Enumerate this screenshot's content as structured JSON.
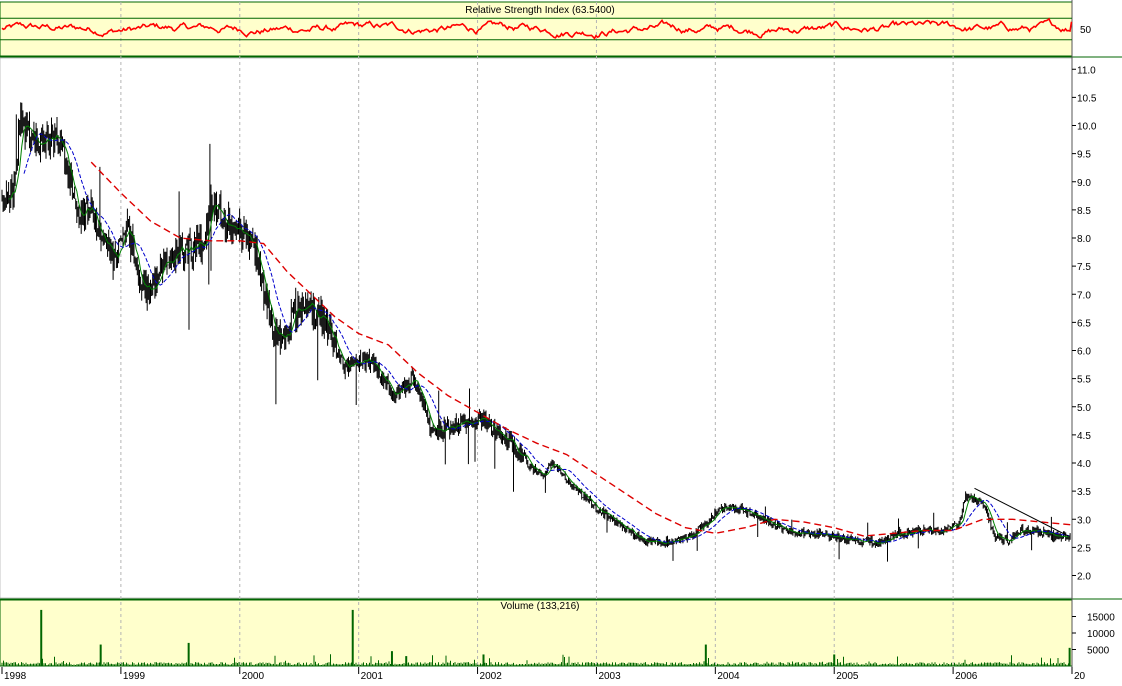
{
  "colors": {
    "rsi_panel_bg": "#ffffcc",
    "rsi_line": "#ff0000",
    "panel_border": "#006600",
    "price_bars": "#000000",
    "ma_short": "#008000",
    "ma_medium": "#0000cc",
    "ma_long": "#dd0000",
    "volume_bars": "#006600",
    "grid": "#b4b4b4"
  },
  "chart_data": [
    {
      "type": "line",
      "panel": "rsi",
      "title": "Relative Strength Index (63.5400)",
      "y_ticks": [
        "50"
      ],
      "ylim": [
        0,
        100
      ],
      "reference_lines": [
        30,
        70
      ],
      "last_value": 63.54,
      "x_range": [
        1998.0,
        2007.0
      ]
    },
    {
      "type": "line",
      "panel": "price",
      "title": "",
      "ylim": [
        1.6,
        11.2
      ],
      "y_ticks": [
        "11.0",
        "10.5",
        "10.0",
        "9.5",
        "9.0",
        "8.5",
        "8.0",
        "7.5",
        "7.0",
        "6.5",
        "6.0",
        "5.5",
        "5.0",
        "4.5",
        "4.0",
        "3.5",
        "3.0",
        "2.5",
        "2.0"
      ],
      "x_range": [
        1998.0,
        2007.0
      ],
      "price_anchor_points": [
        [
          1998.0,
          8.7
        ],
        [
          1998.1,
          8.9
        ],
        [
          1998.15,
          10.1
        ],
        [
          1998.25,
          9.8
        ],
        [
          1998.35,
          9.6
        ],
        [
          1998.45,
          9.9
        ],
        [
          1998.55,
          9.3
        ],
        [
          1998.65,
          8.4
        ],
        [
          1998.75,
          8.5
        ],
        [
          1998.85,
          8.0
        ],
        [
          1998.95,
          7.6
        ],
        [
          1999.05,
          8.2
        ],
        [
          1999.15,
          7.3
        ],
        [
          1999.25,
          7.0
        ],
        [
          1999.35,
          7.5
        ],
        [
          1999.5,
          7.8
        ],
        [
          1999.6,
          7.8
        ],
        [
          1999.7,
          8.0
        ],
        [
          1999.75,
          8.6
        ],
        [
          1999.85,
          8.4
        ],
        [
          1999.95,
          8.2
        ],
        [
          2000.05,
          8.0
        ],
        [
          2000.15,
          7.7
        ],
        [
          2000.2,
          7.1
        ],
        [
          2000.28,
          6.3
        ],
        [
          2000.38,
          6.2
        ],
        [
          2000.45,
          6.7
        ],
        [
          2000.6,
          6.7
        ],
        [
          2000.7,
          6.6
        ],
        [
          2000.82,
          6.0
        ],
        [
          2000.88,
          5.7
        ],
        [
          2001.0,
          5.8
        ],
        [
          2001.1,
          5.8
        ],
        [
          2001.2,
          5.5
        ],
        [
          2001.3,
          5.2
        ],
        [
          2001.45,
          5.5
        ],
        [
          2001.55,
          5.0
        ],
        [
          2001.6,
          4.6
        ],
        [
          2001.75,
          4.6
        ],
        [
          2001.9,
          4.75
        ],
        [
          2002.05,
          4.75
        ],
        [
          2002.15,
          4.6
        ],
        [
          2002.3,
          4.3
        ],
        [
          2002.45,
          3.9
        ],
        [
          2002.55,
          3.8
        ],
        [
          2002.62,
          4.0
        ],
        [
          2002.7,
          3.8
        ],
        [
          2002.85,
          3.5
        ],
        [
          2003.0,
          3.2
        ],
        [
          2003.2,
          2.9
        ],
        [
          2003.4,
          2.6
        ],
        [
          2003.6,
          2.6
        ],
        [
          2003.8,
          2.7
        ],
        [
          2003.9,
          2.9
        ],
        [
          2004.05,
          3.2
        ],
        [
          2004.2,
          3.2
        ],
        [
          2004.4,
          3.0
        ],
        [
          2004.6,
          2.8
        ],
        [
          2004.8,
          2.75
        ],
        [
          2005.0,
          2.7
        ],
        [
          2005.2,
          2.6
        ],
        [
          2005.4,
          2.6
        ],
        [
          2005.55,
          2.75
        ],
        [
          2005.7,
          2.8
        ],
        [
          2005.9,
          2.8
        ],
        [
          2006.05,
          2.9
        ],
        [
          2006.1,
          3.4
        ],
        [
          2006.25,
          3.3
        ],
        [
          2006.35,
          2.7
        ],
        [
          2006.45,
          2.6
        ],
        [
          2006.55,
          2.8
        ],
        [
          2006.7,
          2.8
        ],
        [
          2006.85,
          2.7
        ],
        [
          2007.0,
          2.7
        ]
      ],
      "long_moving_average_points": [
        [
          1998.75,
          9.35
        ],
        [
          1999.0,
          8.8
        ],
        [
          1999.25,
          8.3
        ],
        [
          1999.5,
          8.0
        ],
        [
          1999.75,
          7.95
        ],
        [
          2000.0,
          7.95
        ],
        [
          2000.2,
          7.9
        ],
        [
          2000.4,
          7.4
        ],
        [
          2000.6,
          7.0
        ],
        [
          2000.8,
          6.6
        ],
        [
          2001.0,
          6.3
        ],
        [
          2001.25,
          6.1
        ],
        [
          2001.5,
          5.6
        ],
        [
          2001.75,
          5.2
        ],
        [
          2002.0,
          4.9
        ],
        [
          2002.25,
          4.6
        ],
        [
          2002.5,
          4.35
        ],
        [
          2002.75,
          4.15
        ],
        [
          2003.0,
          3.8
        ],
        [
          2003.25,
          3.45
        ],
        [
          2003.5,
          3.1
        ],
        [
          2003.75,
          2.85
        ],
        [
          2004.0,
          2.75
        ],
        [
          2004.25,
          2.85
        ],
        [
          2004.5,
          3.0
        ],
        [
          2004.75,
          2.95
        ],
        [
          2005.0,
          2.85
        ],
        [
          2005.25,
          2.7
        ],
        [
          2005.5,
          2.75
        ],
        [
          2005.75,
          2.8
        ],
        [
          2006.0,
          2.8
        ],
        [
          2006.25,
          3.0
        ],
        [
          2006.5,
          3.0
        ],
        [
          2006.75,
          2.95
        ],
        [
          2007.0,
          2.9
        ]
      ]
    },
    {
      "type": "bar",
      "panel": "volume",
      "title": "Volume (133,216)",
      "ylim": [
        0,
        20000
      ],
      "y_ticks": [
        "15000",
        "10000",
        "5000"
      ],
      "x_range": [
        1998.0,
        2007.0
      ],
      "spikes": [
        [
          1998.33,
          17000
        ],
        [
          1998.83,
          6500
        ],
        [
          1999.57,
          7000
        ],
        [
          2000.95,
          17000
        ],
        [
          2001.28,
          4500
        ],
        [
          2001.4,
          3000
        ],
        [
          2002.05,
          3500
        ],
        [
          2003.92,
          6500
        ],
        [
          2005.0,
          3500
        ],
        [
          2006.98,
          5500
        ]
      ]
    }
  ],
  "x_axis": {
    "labels": [
      "1998",
      "1999",
      "2000",
      "2001",
      "2002",
      "2003",
      "2004",
      "2005",
      "2006",
      "20"
    ]
  }
}
